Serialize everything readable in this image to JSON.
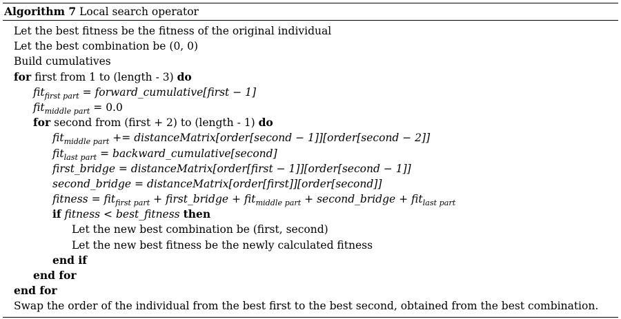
{
  "caption": {
    "label": "Algorithm 7",
    "title": "Local search operator"
  },
  "lines": [
    {
      "text": "Let the best fitness be the fitness of the original individual"
    },
    {
      "text": "Let the best combination be (0, 0)"
    },
    {
      "text": "Build cumulatives"
    },
    {
      "kw": "for",
      "text": "first from 1 to (length - 3)",
      "kw2": "do"
    },
    {
      "lhs": "fit",
      "lhs_sub": "first part",
      "op": " = ",
      "rhs": "forward_cumulative[first − 1]"
    },
    {
      "lhs": "fit",
      "lhs_sub": "middle part",
      "op": " = ",
      "rhs": "0.0"
    },
    {
      "kw": "for",
      "text": "second from (first + 2) to (length - 1)",
      "kw2": "do"
    },
    {
      "lhs": "fit",
      "lhs_sub": "middle part",
      "op": " += ",
      "rhs": "distanceMatrix[order[second − 1]][order[second − 2]]"
    },
    {
      "lhs": "fit",
      "lhs_sub": "last part",
      "op": " = ",
      "rhs": "backward_cumulative[second]"
    },
    {
      "lhs": "first_bridge",
      "op": " = ",
      "rhs": "distanceMatrix[order[first − 1]][order[second − 1]]"
    },
    {
      "lhs": "second_bridge",
      "op": " = ",
      "rhs": "distanceMatrix[order[first]][order[second]]"
    },
    {
      "lhs": "fitness",
      "op": " = ",
      "t1": "fit",
      "t1_sub": "first part",
      "p1": " + ",
      "t2": "first_bridge",
      "p2": " + ",
      "t3": "fit",
      "t3_sub": "middle part",
      "p3": " + ",
      "t4": "second_bridge",
      "p4": " + ",
      "t5": "fit",
      "t5_sub": "last part"
    },
    {
      "kw": "if",
      "cond": "fitness < best_fitness",
      "kw2": "then"
    },
    {
      "text": "Let the new best combination be (first, second)"
    },
    {
      "text": "Let the new best fitness be the newly calculated fitness"
    },
    {
      "kw": "end if"
    },
    {
      "kw": "end for"
    },
    {
      "kw": "end for"
    },
    {
      "text": "Swap the order of the individual from the best first to the best second, obtained from the best combination."
    }
  ]
}
